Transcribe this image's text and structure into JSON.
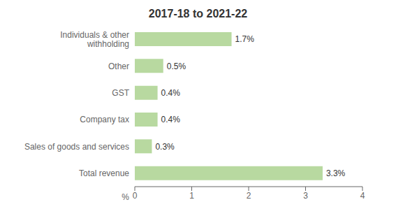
{
  "chart_data": {
    "type": "bar",
    "orientation": "horizontal",
    "title": "2017-18 to 2021-22",
    "categories": [
      "Total revenue",
      "Sales of goods and services",
      "Company tax",
      "GST",
      "Other",
      "Individuals & other\nwithholding"
    ],
    "values": [
      3.3,
      0.3,
      0.4,
      0.4,
      0.5,
      1.7
    ],
    "value_labels": [
      "3.3%",
      "0.3%",
      "0.4%",
      "0.4%",
      "0.5%",
      "1.7%"
    ],
    "data_labels": true,
    "color": "#b8d9a0",
    "xlim": [
      0,
      4
    ],
    "xticks": [
      0,
      1,
      2,
      3,
      4
    ],
    "annotations": [
      "%"
    ]
  }
}
